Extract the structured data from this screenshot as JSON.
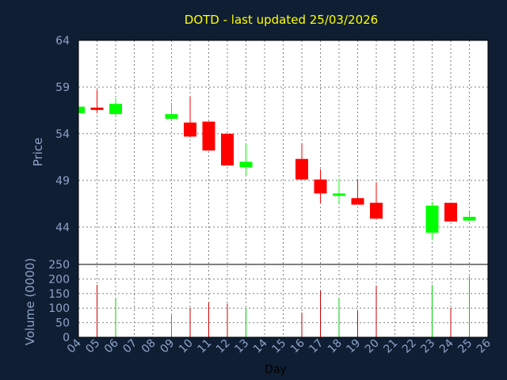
{
  "chart_data": {
    "type": "candlestick",
    "title": "DOTD - last updated 25/03/2026",
    "price_axis": {
      "label": "Price",
      "range": [
        40,
        64
      ],
      "ticks": [
        64,
        59,
        54,
        49,
        44
      ]
    },
    "volume_axis": {
      "label": "Volume (0000)",
      "range": [
        0,
        250
      ],
      "ticks": [
        250,
        200,
        150,
        100,
        50,
        0
      ]
    },
    "x_axis": {
      "label": "Day",
      "ticks": [
        "04",
        "05",
        "06",
        "07",
        "08",
        "09",
        "10",
        "11",
        "12",
        "13",
        "14",
        "15",
        "16",
        "17",
        "18",
        "19",
        "20",
        "21",
        "22",
        "23",
        "24",
        "25",
        "26"
      ]
    },
    "grid": true,
    "colors": {
      "up": "#00ff00",
      "down": "#ff0000",
      "volume_up": "#00cc00",
      "volume_down": "#cc0000",
      "background": "#0f1e33",
      "plot": "#ffffff",
      "title": "#ffff00"
    },
    "candles": [
      {
        "day": 4,
        "open": 56.2,
        "high": 56.9,
        "low": 56.2,
        "close": 56.9,
        "volume": 0
      },
      {
        "day": 5,
        "open": 56.8,
        "high": 58.7,
        "low": 56.2,
        "close": 56.6,
        "volume": 180
      },
      {
        "day": 6,
        "open": 56.1,
        "high": 57.8,
        "low": 56.0,
        "close": 57.2,
        "volume": 135
      },
      {
        "day": 9,
        "open": 55.6,
        "high": 57.3,
        "low": 55.4,
        "close": 56.1,
        "volume": 75
      },
      {
        "day": 10,
        "open": 55.2,
        "high": 58.0,
        "low": 53.6,
        "close": 53.7,
        "volume": 100
      },
      {
        "day": 11,
        "open": 55.3,
        "high": 55.3,
        "low": 52.2,
        "close": 52.2,
        "volume": 120
      },
      {
        "day": 12,
        "open": 54.0,
        "high": 54.0,
        "low": 50.6,
        "close": 50.6,
        "volume": 115
      },
      {
        "day": 13,
        "open": 50.4,
        "high": 52.9,
        "low": 49.5,
        "close": 51.0,
        "volume": 100
      },
      {
        "day": 16,
        "open": 51.3,
        "high": 53.0,
        "low": 49.1,
        "close": 49.1,
        "volume": 85
      },
      {
        "day": 17,
        "open": 49.1,
        "high": 50.2,
        "low": 46.6,
        "close": 47.6,
        "volume": 160
      },
      {
        "day": 18,
        "open": 47.4,
        "high": 49.2,
        "low": 46.6,
        "close": 47.6,
        "volume": 135
      },
      {
        "day": 19,
        "open": 47.1,
        "high": 49.1,
        "low": 46.4,
        "close": 46.4,
        "volume": 90
      },
      {
        "day": 20,
        "open": 46.6,
        "high": 48.8,
        "low": 44.9,
        "close": 44.9,
        "volume": 178
      },
      {
        "day": 23,
        "open": 43.4,
        "high": 46.7,
        "low": 42.6,
        "close": 46.3,
        "volume": 180
      },
      {
        "day": 24,
        "open": 46.6,
        "high": 46.6,
        "low": 44.6,
        "close": 44.6,
        "volume": 100
      },
      {
        "day": 25,
        "open": 44.7,
        "high": 45.6,
        "low": 44.6,
        "close": 45.1,
        "volume": 210
      }
    ]
  }
}
